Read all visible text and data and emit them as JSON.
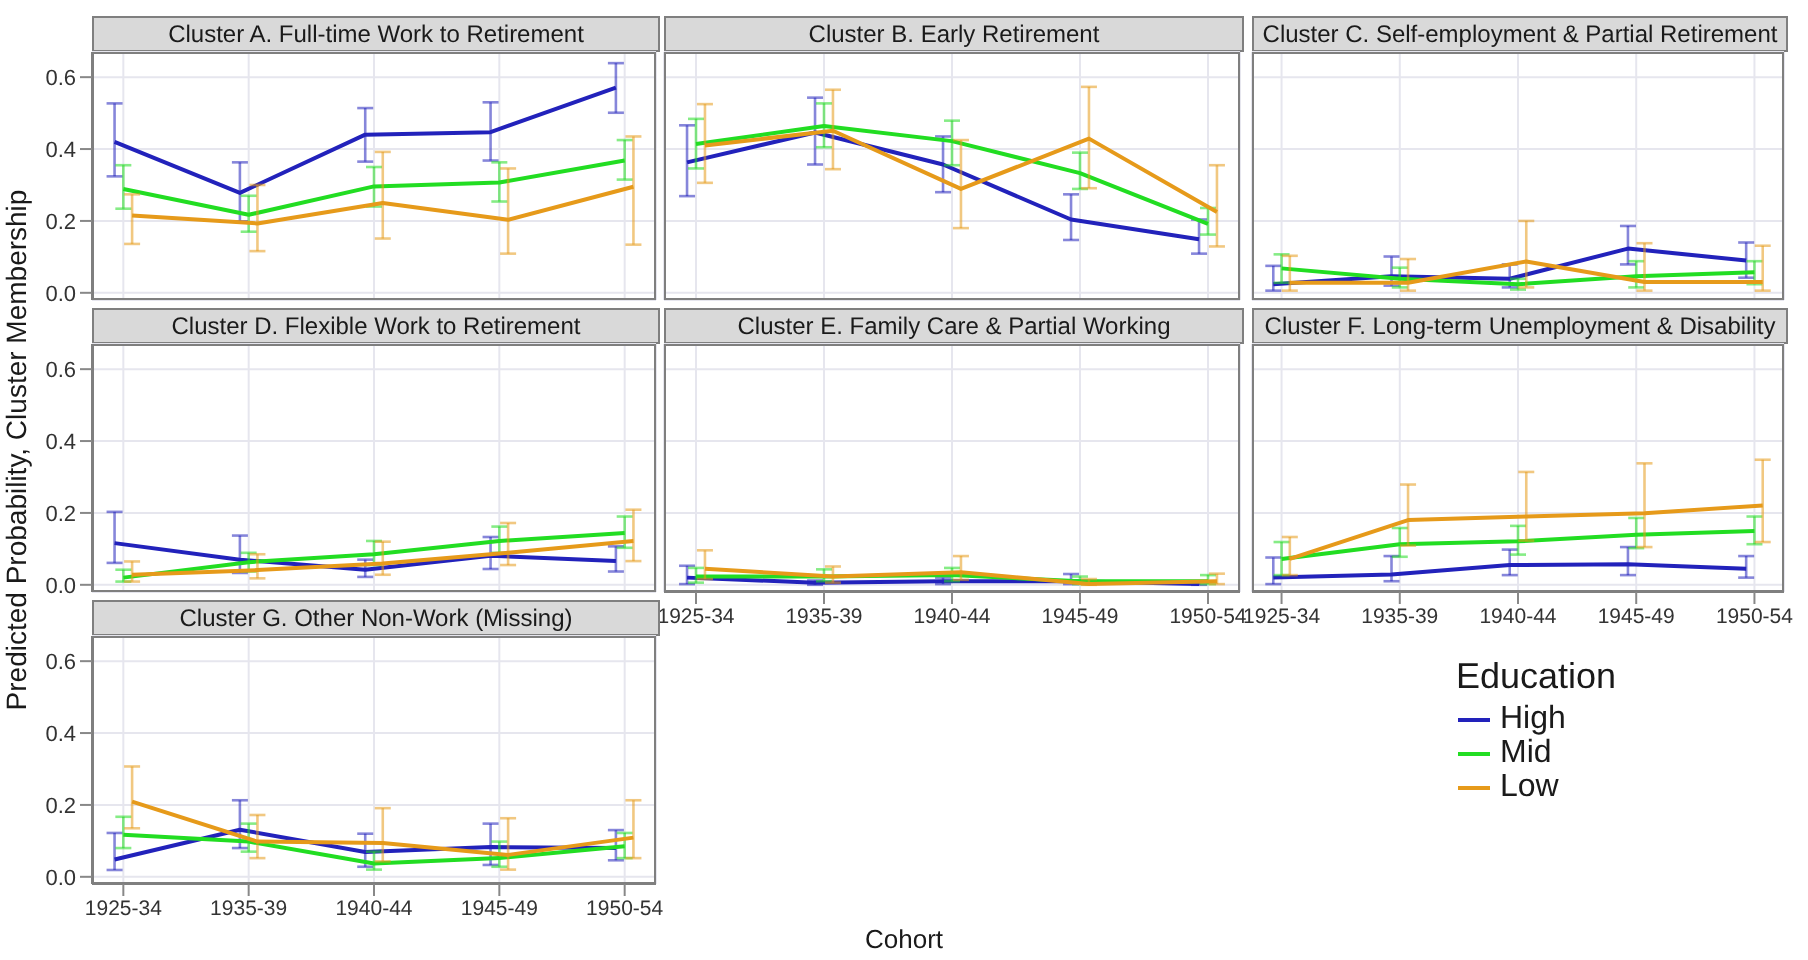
{
  "chart_data": [
    {
      "type": "line",
      "title": "Cluster A. Full-time Work to Retirement",
      "categories": [
        "1925-34",
        "1935-39",
        "1940-44",
        "1945-49",
        "1950-54"
      ],
      "ylim": [
        -0.02,
        0.67
      ],
      "yticks": [
        {
          "value": 0,
          "label": "0.0"
        },
        {
          "value": 0.2,
          "label": "0.2"
        },
        {
          "value": 0.4,
          "label": "0.4"
        },
        {
          "value": 0.6,
          "label": "0.6"
        }
      ],
      "grid": true,
      "tick_labels": "y",
      "legend": false,
      "series": [
        {
          "color": "#2222bb",
          "values": [
            0.42,
            0.278,
            0.44,
            0.447,
            0.571
          ],
          "errors": [
            [
              0.324,
              0.527
            ],
            [
              0.199,
              0.363
            ],
            [
              0.365,
              0.514
            ],
            [
              0.368,
              0.53
            ],
            [
              0.501,
              0.639
            ]
          ]
        },
        {
          "color": "#22dd22",
          "values": [
            0.289,
            0.217,
            0.296,
            0.307,
            0.368
          ],
          "errors": [
            [
              0.234,
              0.355
            ],
            [
              0.17,
              0.27
            ],
            [
              0.24,
              0.35
            ],
            [
              0.254,
              0.363
            ],
            [
              0.315,
              0.425
            ]
          ]
        },
        {
          "color": "#e69a1a",
          "values": [
            0.215,
            0.193,
            0.25,
            0.203,
            0.295
          ],
          "errors": [
            [
              0.136,
              0.274
            ],
            [
              0.116,
              0.3
            ],
            [
              0.151,
              0.392
            ],
            [
              0.109,
              0.346
            ],
            [
              0.134,
              0.435
            ]
          ]
        }
      ]
    },
    {
      "type": "line",
      "title": "Cluster B. Early Retirement",
      "categories": [
        "1925-34",
        "1935-39",
        "1940-44",
        "1945-49",
        "1950-54"
      ],
      "ylim": [
        -0.02,
        0.67
      ],
      "yticks": [
        0,
        0.2,
        0.4,
        0.6
      ],
      "grid": true,
      "tick_labels": false,
      "legend": false,
      "series": [
        {
          "color": "#2222bb",
          "values": [
            0.363,
            0.446,
            0.357,
            0.204,
            0.149
          ],
          "errors": [
            [
              0.269,
              0.466
            ],
            [
              0.357,
              0.543
            ],
            [
              0.28,
              0.435
            ],
            [
              0.147,
              0.274
            ],
            [
              0.109,
              0.204
            ]
          ]
        },
        {
          "color": "#22dd22",
          "values": [
            0.414,
            0.464,
            0.422,
            0.333,
            0.192
          ],
          "errors": [
            [
              0.346,
              0.484
            ],
            [
              0.405,
              0.527
            ],
            [
              0.355,
              0.479
            ],
            [
              0.289,
              0.39
            ],
            [
              0.162,
              0.236
            ]
          ]
        },
        {
          "color": "#e69a1a",
          "values": [
            0.41,
            0.451,
            0.289,
            0.429,
            0.225
          ],
          "errors": [
            [
              0.306,
              0.525
            ],
            [
              0.344,
              0.565
            ],
            [
              0.18,
              0.425
            ],
            [
              0.291,
              0.573
            ],
            [
              0.129,
              0.355
            ]
          ]
        }
      ]
    },
    {
      "type": "line",
      "title": "Cluster C. Self-employment & Partial Retirement",
      "categories": [
        "1925-34",
        "1935-39",
        "1940-44",
        "1945-49",
        "1950-54"
      ],
      "ylim": [
        -0.02,
        0.67
      ],
      "yticks": [
        0,
        0.2,
        0.4,
        0.6
      ],
      "grid": true,
      "tick_labels": false,
      "legend": false,
      "series": [
        {
          "color": "#2222bb",
          "values": [
            0.024,
            0.046,
            0.039,
            0.123,
            0.09
          ],
          "errors": [
            [
              0.006,
              0.075
            ],
            [
              0.02,
              0.101
            ],
            [
              0.015,
              0.079
            ],
            [
              0.079,
              0.186
            ],
            [
              0.042,
              0.14
            ]
          ]
        },
        {
          "color": "#22dd22",
          "values": [
            0.068,
            0.039,
            0.024,
            0.046,
            0.057
          ],
          "errors": [
            [
              0.028,
              0.107
            ],
            [
              0.015,
              0.07
            ],
            [
              0.009,
              0.039
            ],
            [
              0.015,
              0.088
            ],
            [
              0.024,
              0.088
            ]
          ]
        },
        {
          "color": "#e69a1a",
          "values": [
            0.028,
            0.028,
            0.087,
            0.03,
            0.03
          ],
          "errors": [
            [
              0.006,
              0.103
            ],
            [
              0.006,
              0.094
            ],
            [
              0.015,
              0.2
            ],
            [
              0.006,
              0.138
            ],
            [
              0.006,
              0.131
            ]
          ]
        }
      ]
    },
    {
      "type": "line",
      "title": "Cluster D. Flexible Work to Retirement",
      "ylabel": "Predicted Probability, Cluster Membership",
      "categories": [
        "1925-34",
        "1935-39",
        "1940-44",
        "1945-49",
        "1950-54"
      ],
      "ylim": [
        -0.02,
        0.67
      ],
      "yticks": [
        {
          "value": 0,
          "label": "0.0"
        },
        {
          "value": 0.2,
          "label": "0.2"
        },
        {
          "value": 0.4,
          "label": "0.4"
        },
        {
          "value": 0.6,
          "label": "0.6"
        }
      ],
      "grid": true,
      "tick_labels": "y",
      "legend": false,
      "series": [
        {
          "color": "#2222bb",
          "values": [
            0.116,
            0.07,
            0.042,
            0.081,
            0.066
          ],
          "errors": [
            [
              0.061,
              0.203
            ],
            [
              0.033,
              0.137
            ],
            [
              0.022,
              0.07
            ],
            [
              0.044,
              0.133
            ],
            [
              0.037,
              0.107
            ]
          ]
        },
        {
          "color": "#22dd22",
          "values": [
            0.02,
            0.063,
            0.085,
            0.122,
            0.144
          ],
          "errors": [
            [
              0.009,
              0.042
            ],
            [
              0.037,
              0.089
            ],
            [
              0.055,
              0.122
            ],
            [
              0.089,
              0.162
            ],
            [
              0.103,
              0.19
            ]
          ]
        },
        {
          "color": "#e69a1a",
          "values": [
            0.028,
            0.041,
            0.059,
            0.089,
            0.122
          ],
          "errors": [
            [
              0.009,
              0.065
            ],
            [
              0.018,
              0.085
            ],
            [
              0.028,
              0.12
            ],
            [
              0.055,
              0.172
            ],
            [
              0.066,
              0.209
            ]
          ]
        }
      ]
    },
    {
      "type": "line",
      "title": "Cluster E. Family Care & Partial Working",
      "xlabel": "Cohort",
      "categories": [
        "1925-34",
        "1935-39",
        "1940-44",
        "1945-49",
        "1950-54"
      ],
      "ylim": [
        -0.02,
        0.67
      ],
      "yticks": [
        0,
        0.2,
        0.4,
        0.6
      ],
      "grid": true,
      "tick_labels": "x",
      "legend": false,
      "series": [
        {
          "color": "#2222bb",
          "values": [
            0.02,
            0.006,
            0.01,
            0.01,
            0.002
          ],
          "errors": [
            [
              0.002,
              0.053
            ],
            [
              0,
              0.012
            ],
            [
              0.002,
              0.02
            ],
            [
              0.002,
              0.03
            ],
            [
              0,
              0.008
            ]
          ]
        },
        {
          "color": "#22dd22",
          "values": [
            0.023,
            0.023,
            0.027,
            0.01,
            0.01
          ],
          "errors": [
            [
              0.006,
              0.047
            ],
            [
              0.01,
              0.043
            ],
            [
              0.01,
              0.047
            ],
            [
              0.002,
              0.023
            ],
            [
              0.002,
              0.027
            ]
          ]
        },
        {
          "color": "#e69a1a",
          "values": [
            0.045,
            0.023,
            0.035,
            0.002,
            0.01
          ],
          "errors": [
            [
              0.016,
              0.096
            ],
            [
              0.006,
              0.051
            ],
            [
              0.014,
              0.08
            ],
            [
              0,
              0.016
            ],
            [
              0.002,
              0.031
            ]
          ]
        }
      ]
    },
    {
      "type": "line",
      "title": "Cluster F. Long-term Unemployment & Disability",
      "categories": [
        "1925-34",
        "1935-39",
        "1940-44",
        "1945-49",
        "1950-54"
      ],
      "ylim": [
        -0.02,
        0.67
      ],
      "yticks": [
        0,
        0.2,
        0.4,
        0.6
      ],
      "grid": true,
      "tick_labels": "x",
      "legend": false,
      "series": [
        {
          "color": "#2222bb",
          "values": [
            0.02,
            0.029,
            0.055,
            0.057,
            0.045
          ],
          "errors": [
            [
              0.002,
              0.076
            ],
            [
              0.01,
              0.08
            ],
            [
              0.027,
              0.098
            ],
            [
              0.027,
              0.105
            ],
            [
              0.02,
              0.08
            ]
          ]
        },
        {
          "color": "#22dd22",
          "values": [
            0.072,
            0.113,
            0.121,
            0.139,
            0.15
          ],
          "errors": [
            [
              0.027,
              0.119
            ],
            [
              0.078,
              0.158
            ],
            [
              0.084,
              0.164
            ],
            [
              0.102,
              0.186
            ],
            [
              0.113,
              0.19
            ]
          ]
        },
        {
          "color": "#e69a1a",
          "values": [
            0.072,
            0.18,
            0.19,
            0.199,
            0.221
          ],
          "errors": [
            [
              0.027,
              0.133
            ],
            [
              0.109,
              0.279
            ],
            [
              0.123,
              0.314
            ],
            [
              0.105,
              0.338
            ],
            [
              0.119,
              0.348
            ]
          ]
        }
      ]
    },
    {
      "type": "line",
      "title": "Cluster G. Other Non-Work (Missing)",
      "legend_title": "Education",
      "categories": [
        "1925-34",
        "1935-39",
        "1940-44",
        "1945-49",
        "1950-54"
      ],
      "ylim": [
        -0.02,
        0.67
      ],
      "yticks": [
        {
          "value": 0,
          "label": "0.0"
        },
        {
          "value": 0.2,
          "label": "0.2"
        },
        {
          "value": 0.4,
          "label": "0.4"
        },
        {
          "value": 0.6,
          "label": "0.6"
        }
      ],
      "grid": true,
      "legend": "right",
      "series": [
        {
          "name": "High",
          "color": "#2222bb",
          "values": [
            0.048,
            0.131,
            0.069,
            0.083,
            0.08
          ],
          "errors": [
            [
              0.019,
              0.122
            ],
            [
              0.08,
              0.213
            ],
            [
              0.028,
              0.12
            ],
            [
              0.033,
              0.148
            ],
            [
              0.046,
              0.13
            ]
          ]
        },
        {
          "name": "Mid",
          "color": "#22dd22",
          "values": [
            0.117,
            0.098,
            0.037,
            0.052,
            0.085
          ],
          "errors": [
            [
              0.08,
              0.167
            ],
            [
              0.07,
              0.148
            ],
            [
              0.02,
              0.07
            ],
            [
              0.028,
              0.098
            ],
            [
              0.052,
              0.122
            ]
          ]
        },
        {
          "name": "Low",
          "color": "#e69a1a",
          "values": [
            0.209,
            0.098,
            0.094,
            0.061,
            0.109
          ],
          "errors": [
            [
              0.135,
              0.307
            ],
            [
              0.052,
              0.172
            ],
            [
              0.043,
              0.191
            ],
            [
              0.02,
              0.163
            ],
            [
              0.052,
              0.213
            ]
          ]
        }
      ]
    }
  ]
}
